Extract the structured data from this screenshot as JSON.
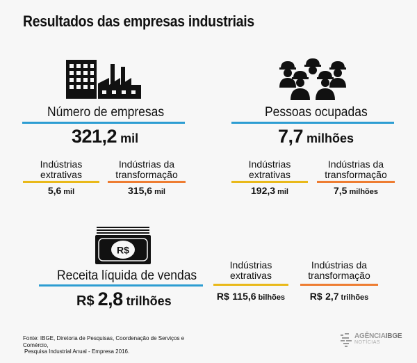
{
  "title": "Resultados das empresas industriais",
  "empresas": {
    "label": "Número de empresas",
    "value": "321,2",
    "unit": "mil",
    "extrativas": {
      "label_line1": "Indústrias",
      "label_line2": "extrativas",
      "value": "5,6",
      "unit": "mil"
    },
    "transformacao": {
      "label_line1": "Indústrias da",
      "label_line2": "transformação",
      "value": "315,6",
      "unit": "mil"
    }
  },
  "pessoas": {
    "label": "Pessoas ocupadas",
    "value": "7,7",
    "unit": "milhões",
    "extrativas": {
      "label_line1": "Indústrias",
      "label_line2": "extrativas",
      "value": "192,3",
      "unit": "mil"
    },
    "transformacao": {
      "label_line1": "Indústrias da",
      "label_line2": "transformação",
      "value": "7,5",
      "unit": "milhões"
    }
  },
  "receita": {
    "label": "Receita líquida de vendas",
    "prefix": "R$",
    "value": "2,8",
    "unit": "trilhões",
    "icon_text": "R$",
    "extrativas": {
      "label_line1": "Indústrias",
      "label_line2": "extrativas",
      "prefix": "R$",
      "value": "115,6",
      "unit": "bilhões"
    },
    "transformacao": {
      "label_line1": "Indústrias da",
      "label_line2": "transformação",
      "prefix": "R$",
      "value": "2,7",
      "unit": "trilhões"
    }
  },
  "footnote": {
    "line1": "Fonte: IBGE, Diretoria de Pesquisas, Coordenação de Serviços e Comércio,",
    "line2": "Pesquisa Industrial Anual - Empresa 2016."
  },
  "logo": {
    "agencia": "AGÊNCIA",
    "ibge": "IBGE",
    "noticias": "NOTÍCIAS"
  },
  "colors": {
    "blue": "#2d9dd2",
    "yellow": "#e9b91a",
    "orange": "#ee7d32",
    "text": "#111111"
  },
  "icons": [
    "factory-icon",
    "workers-icon",
    "money-icon",
    "ibge-logo-icon"
  ]
}
